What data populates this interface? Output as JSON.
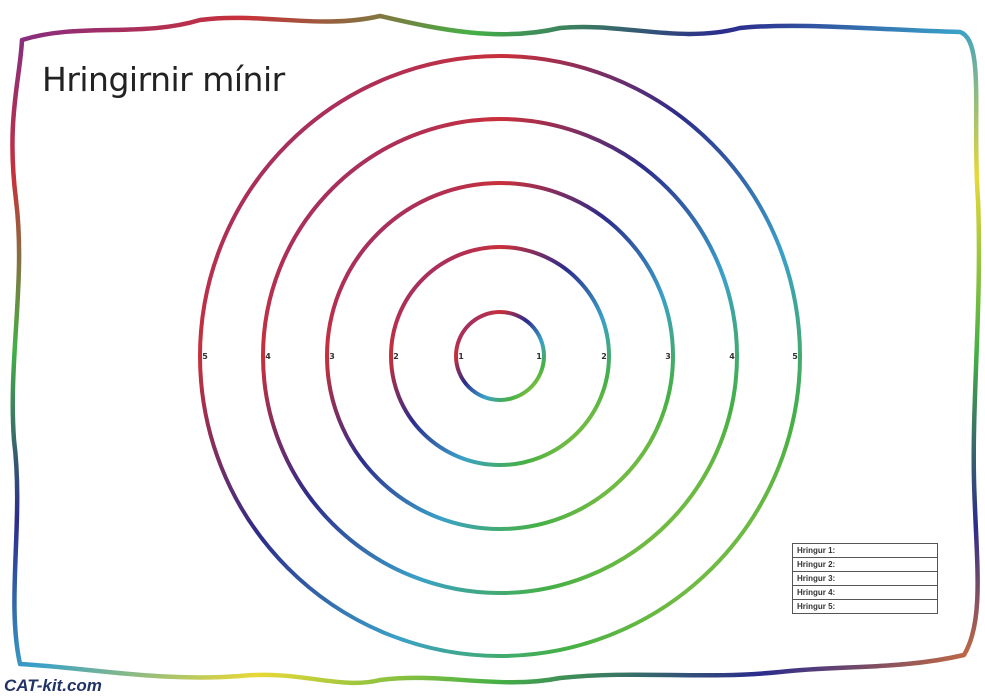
{
  "title": "Hringirnir mínir",
  "logo": "CAT-kit.com",
  "left_ticks": [
    "5",
    "4",
    "3",
    "2",
    "1"
  ],
  "right_ticks": [
    "1",
    "2",
    "3",
    "4",
    "5"
  ],
  "legend": [
    "Hringur 1:",
    "Hringur 2:",
    "Hringur 3:",
    "Hringur 4:",
    "Hringur 5:"
  ],
  "colors": {
    "rainbow": [
      "#7b2d8e",
      "#2c2c8c",
      "#3aa0c8",
      "#45b045",
      "#e8d838",
      "#e87a30",
      "#c8303a"
    ],
    "text": "#222222"
  }
}
